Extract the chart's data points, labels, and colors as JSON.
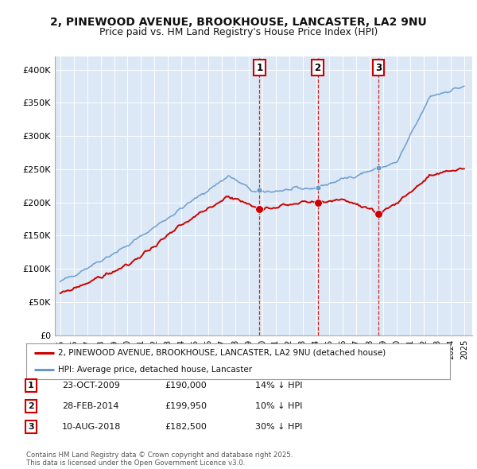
{
  "title_line1": "2, PINEWOOD AVENUE, BROOKHOUSE, LANCASTER, LA2 9NU",
  "title_line2": "Price paid vs. HM Land Registry's House Price Index (HPI)",
  "ylim": [
    0,
    420000
  ],
  "yticks": [
    0,
    50000,
    100000,
    150000,
    200000,
    250000,
    300000,
    350000,
    400000
  ],
  "ytick_labels": [
    "£0",
    "£50K",
    "£100K",
    "£150K",
    "£200K",
    "£250K",
    "£300K",
    "£350K",
    "£400K"
  ],
  "background_color": "#ffffff",
  "plot_bg_color": "#dce8f5",
  "legend_label_red": "2, PINEWOOD AVENUE, BROOKHOUSE, LANCASTER, LA2 9NU (detached house)",
  "legend_label_blue": "HPI: Average price, detached house, Lancaster",
  "sale_prices": [
    190000,
    199950,
    182500
  ],
  "sale_labels": [
    "1",
    "2",
    "3"
  ],
  "sale_info": [
    {
      "label": "1",
      "date": "23-OCT-2009",
      "price": "£190,000",
      "hpi": "14% ↓ HPI"
    },
    {
      "label": "2",
      "date": "28-FEB-2014",
      "price": "£199,950",
      "hpi": "10% ↓ HPI"
    },
    {
      "label": "3",
      "date": "10-AUG-2018",
      "price": "£182,500",
      "hpi": "30% ↓ HPI"
    }
  ],
  "footer": "Contains HM Land Registry data © Crown copyright and database right 2025.\nThis data is licensed under the Open Government Licence v3.0.",
  "red_color": "#cc0000",
  "blue_color": "#6699cc",
  "vline_color": "#cc0000"
}
